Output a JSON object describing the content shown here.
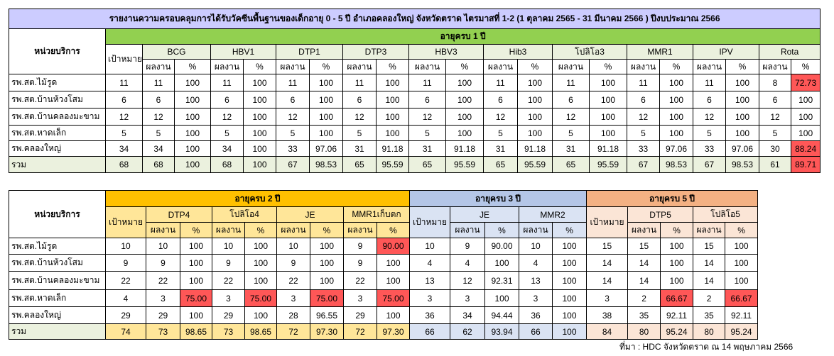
{
  "table1": {
    "title": "รายงานความครอบคลุมการได้รับวัคซีนพื้นฐานของเด็กอายุ 0 - 5 ปี อำเภอคลองใหญ่ จังหวัดตราด ไตรมาสที่ 1-2 (1 ตุลาคม 2565 - 31 มีนาคม 2566 ) ปีงบประมาณ 2566",
    "title_color": "#ccccff",
    "unit_header": "หน่วยบริการ",
    "age_header": "อายุครบ 1 ปี",
    "age_color": "#92d050",
    "light_color": "#ebf1de",
    "target_header": "เป้าหมาย",
    "result_header": "ผลงาน",
    "percent_header": "%",
    "vaccines": [
      "BCG",
      "HBV1",
      "DTP1",
      "DTP3",
      "HBV3",
      "Hib3",
      "โปลิโอ3",
      "MMR1",
      "IPV",
      "Rota"
    ],
    "rows": [
      {
        "unit": "รพ.สต.ไม้รูด",
        "cells": [
          "11",
          "11",
          "100",
          "11",
          "100",
          "11",
          "100",
          "11",
          "100",
          "11",
          "100",
          "11",
          "100",
          "11",
          "100",
          "11",
          "100",
          "11",
          "100",
          "8",
          "72.73"
        ]
      },
      {
        "unit": "รพ.สต.บ้านห้วงโสม",
        "cells": [
          "6",
          "6",
          "100",
          "6",
          "100",
          "6",
          "100",
          "6",
          "100",
          "6",
          "100",
          "6",
          "100",
          "6",
          "100",
          "6",
          "100",
          "6",
          "100",
          "6",
          "100"
        ]
      },
      {
        "unit": "รพ.สต.บ้านคลองมะขาม",
        "cells": [
          "12",
          "12",
          "100",
          "12",
          "100",
          "12",
          "100",
          "12",
          "100",
          "12",
          "100",
          "12",
          "100",
          "12",
          "100",
          "12",
          "100",
          "12",
          "100",
          "12",
          "100"
        ]
      },
      {
        "unit": "รพ.สต.หาดเล็ก",
        "cells": [
          "5",
          "5",
          "100",
          "5",
          "100",
          "5",
          "100",
          "5",
          "100",
          "5",
          "100",
          "5",
          "100",
          "5",
          "100",
          "5",
          "100",
          "5",
          "100",
          "5",
          "100"
        ]
      },
      {
        "unit": "รพ.คลองใหญ่",
        "cells": [
          "34",
          "34",
          "100",
          "34",
          "100",
          "33",
          "97.06",
          "31",
          "91.18",
          "31",
          "91.18",
          "31",
          "91.18",
          "31",
          "91.18",
          "33",
          "97.06",
          "33",
          "97.06",
          "30",
          "88.24"
        ]
      },
      {
        "unit": "รวม",
        "cells": [
          "68",
          "68",
          "100",
          "68",
          "100",
          "67",
          "98.53",
          "65",
          "95.59",
          "65",
          "95.59",
          "65",
          "95.59",
          "65",
          "95.59",
          "67",
          "98.53",
          "67",
          "98.53",
          "61",
          "89.71"
        ]
      }
    ],
    "highlighted": [
      "table1.rows.0.cells.20",
      "table1.rows.4.cells.20",
      "table1.rows.5.cells.20"
    ]
  },
  "table2": {
    "unit_header": "หน่วยบริการ",
    "target_header": "เป้าหมาย",
    "result_header": "ผลงาน",
    "percent_header": "%",
    "total_color": "#ebf1de",
    "groups": [
      {
        "label": "อายุครบ 2 ปี",
        "color": "#ffc000",
        "light": "#ffe699",
        "vaccines": [
          "DTP4",
          "โปลิโอ4",
          "JE",
          "MMR1เก็บตก"
        ]
      },
      {
        "label": "อายุครบ 3 ปี",
        "color": "#b4c6e7",
        "light": "#dae3f3",
        "vaccines": [
          "JE",
          "MMR2"
        ]
      },
      {
        "label": "อายุครบ 5 ปี",
        "color": "#f4b183",
        "light": "#fbe5d6",
        "vaccines": [
          "DTP5",
          "โปลิโอ5"
        ]
      }
    ],
    "rows": [
      {
        "unit": "รพ.สต.ไม้รูด",
        "cells": [
          "10",
          "10",
          "100",
          "10",
          "100",
          "10",
          "100",
          "9",
          "90.00",
          "10",
          "9",
          "90.00",
          "10",
          "100",
          "15",
          "15",
          "100",
          "15",
          "100"
        ]
      },
      {
        "unit": "รพ.สต.บ้านห้วงโสม",
        "cells": [
          "9",
          "9",
          "100",
          "9",
          "100",
          "9",
          "100",
          "9",
          "100",
          "4",
          "4",
          "100",
          "4",
          "100",
          "14",
          "14",
          "100",
          "14",
          "100"
        ]
      },
      {
        "unit": "รพ.สต.บ้านคลองมะขาม",
        "cells": [
          "22",
          "22",
          "100",
          "22",
          "100",
          "22",
          "100",
          "22",
          "100",
          "13",
          "12",
          "92.31",
          "13",
          "100",
          "14",
          "14",
          "100",
          "14",
          "100"
        ]
      },
      {
        "unit": "รพ.สต.หาดเล็ก",
        "cells": [
          "4",
          "3",
          "75.00",
          "3",
          "75.00",
          "3",
          "75.00",
          "3",
          "75.00",
          "3",
          "3",
          "100",
          "3",
          "100",
          "3",
          "2",
          "66.67",
          "2",
          "66.67"
        ]
      },
      {
        "unit": "รพ.คลองใหญ่",
        "cells": [
          "29",
          "29",
          "100",
          "29",
          "100",
          "28",
          "96.55",
          "29",
          "100",
          "36",
          "34",
          "94.44",
          "36",
          "100",
          "38",
          "35",
          "92.11",
          "35",
          "92.11"
        ]
      },
      {
        "unit": "รวม",
        "cells": [
          "74",
          "73",
          "98.65",
          "73",
          "98.65",
          "72",
          "97.30",
          "72",
          "97.30",
          "66",
          "62",
          "93.94",
          "66",
          "100",
          "84",
          "80",
          "95.24",
          "80",
          "95.24"
        ]
      }
    ],
    "highlighted": [
      "table2.rows.0.cells.8",
      "table2.rows.3.cells.2",
      "table2.rows.3.cells.4",
      "table2.rows.3.cells.6",
      "table2.rows.3.cells.8",
      "table2.rows.3.cells.16",
      "table2.rows.3.cells.18"
    ]
  },
  "highlight_color": "#ff5757",
  "source": "ที่มา : HDC จังหวัดตราด ณ 14 พฤษภาคม 2566"
}
